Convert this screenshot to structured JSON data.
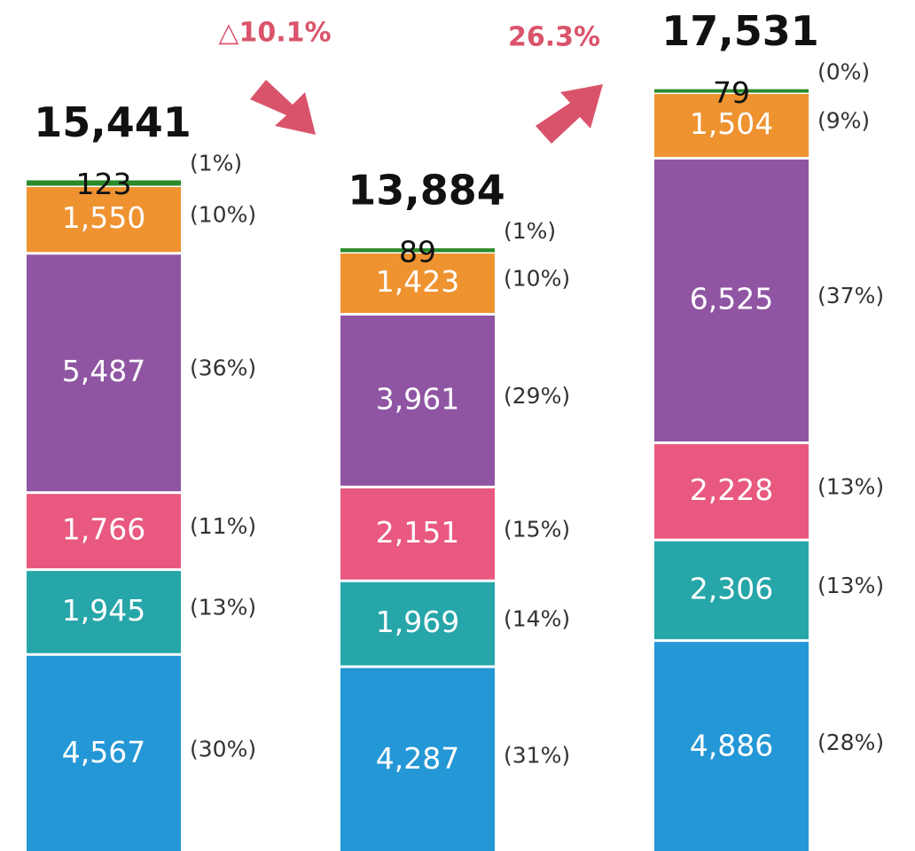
{
  "chart_data": {
    "type": "stacked_bar",
    "categories": [
      null,
      null,
      null
    ],
    "series": [
      {
        "color": "#2497d6",
        "values": [
          4567,
          4287,
          4886
        ],
        "value_labels": [
          "4,567",
          "4,287",
          "4,886"
        ],
        "percent_labels": [
          "(30%)",
          "(31%)",
          "(28%)"
        ]
      },
      {
        "color": "#26a6a9",
        "values": [
          1945,
          1969,
          2306
        ],
        "value_labels": [
          "1,945",
          "1,969",
          "2,306"
        ],
        "percent_labels": [
          "(13%)",
          "(14%)",
          "(13%)"
        ]
      },
      {
        "color": "#e8587f",
        "values": [
          1766,
          2151,
          2228
        ],
        "value_labels": [
          "1,766",
          "2,151",
          "2,228"
        ],
        "percent_labels": [
          "(11%)",
          "(15%)",
          "(13%)"
        ]
      },
      {
        "color": "#8f55a3",
        "values": [
          5487,
          3961,
          6525
        ],
        "value_labels": [
          "5,487",
          "3,961",
          "6,525"
        ],
        "percent_labels": [
          "(36%)",
          "(29%)",
          "(37%)"
        ]
      },
      {
        "color": "#ef9331",
        "values": [
          1550,
          1423,
          1504
        ],
        "value_labels": [
          "1,550",
          "1,423",
          "1,504"
        ],
        "percent_labels": [
          "(10%)",
          "(10%)",
          "(9%)"
        ]
      },
      {
        "color": "#2a8a2a",
        "values": [
          123,
          89,
          79
        ],
        "value_labels": [
          "123",
          "89",
          "79"
        ],
        "percent_labels": [
          "(1%)",
          "(1%)",
          "(0%)"
        ]
      }
    ],
    "totals": [
      15441,
      13884,
      17531
    ],
    "total_labels": [
      "15,441",
      "13,884",
      "17,531"
    ],
    "annotations": [
      "△10.1%",
      "26.3%"
    ]
  }
}
